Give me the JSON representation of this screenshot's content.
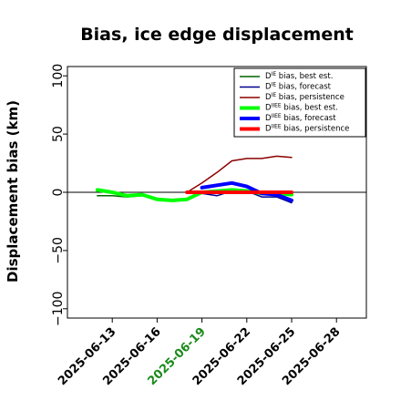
{
  "chart_data": {
    "type": "line",
    "title": "Bias, ice edge displacement",
    "xlabel": "",
    "ylabel": "Displacement bias (km)",
    "xlim": [
      "2025-06-10",
      "2025-06-30"
    ],
    "ylim": [
      -108,
      108
    ],
    "yticks": [
      -100,
      -50,
      0,
      50,
      100
    ],
    "ytick_labels": [
      "−100",
      "−50",
      "0",
      "50",
      "100"
    ],
    "xticks": [
      "2025-06-13",
      "2025-06-16",
      "2025-06-19",
      "2025-06-22",
      "2025-06-25",
      "2025-06-28"
    ],
    "xtick_labels": [
      "2025-06-13",
      "2025-06-16",
      "2025-06-19",
      "2025-06-22",
      "2025-06-25",
      "2025-06-28"
    ],
    "highlight_tick": "2025-06-19",
    "highlight_color": "#1a8a1a",
    "zero_line": true,
    "grid": false,
    "legend_position": "top-right",
    "series": [
      {
        "name": "D^IE bias, best est.",
        "color": "#006400",
        "width": 1.5,
        "points": [
          [
            "2025-06-12",
            -3
          ],
          [
            "2025-06-13",
            -3
          ],
          [
            "2025-06-14",
            -4
          ],
          [
            "2025-06-15",
            -3
          ],
          [
            "2025-06-16",
            -6
          ],
          [
            "2025-06-17",
            -7
          ],
          [
            "2025-06-18",
            -6
          ],
          [
            "2025-06-19",
            1
          ],
          [
            "2025-06-20",
            1
          ],
          [
            "2025-06-21",
            3
          ],
          [
            "2025-06-22",
            2
          ],
          [
            "2025-06-23",
            0
          ],
          [
            "2025-06-24",
            -1
          ],
          [
            "2025-06-25",
            -3
          ]
        ]
      },
      {
        "name": "D^IE bias, forecast",
        "color": "#00008b",
        "width": 1.5,
        "points": [
          [
            "2025-06-18",
            0
          ],
          [
            "2025-06-19",
            -1
          ],
          [
            "2025-06-20",
            -3
          ],
          [
            "2025-06-21",
            1
          ],
          [
            "2025-06-22",
            1
          ],
          [
            "2025-06-23",
            -4
          ],
          [
            "2025-06-24",
            -4
          ],
          [
            "2025-06-25",
            -9
          ]
        ]
      },
      {
        "name": "D^IE bias, persistence",
        "color": "#8b0000",
        "width": 1.5,
        "points": [
          [
            "2025-06-18",
            0
          ],
          [
            "2025-06-19",
            8
          ],
          [
            "2025-06-20",
            17
          ],
          [
            "2025-06-21",
            27
          ],
          [
            "2025-06-22",
            29
          ],
          [
            "2025-06-23",
            29
          ],
          [
            "2025-06-24",
            31
          ],
          [
            "2025-06-25",
            30
          ]
        ]
      },
      {
        "name": "D^IIEE bias, best est.",
        "color": "#00ff00",
        "width": 4,
        "points": [
          [
            "2025-06-12",
            2
          ],
          [
            "2025-06-13",
            0
          ],
          [
            "2025-06-14",
            -3
          ],
          [
            "2025-06-15",
            -2
          ],
          [
            "2025-06-16",
            -6
          ],
          [
            "2025-06-17",
            -7
          ],
          [
            "2025-06-18",
            -6
          ],
          [
            "2025-06-19",
            0
          ],
          [
            "2025-06-20",
            1
          ],
          [
            "2025-06-21",
            2
          ],
          [
            "2025-06-22",
            1
          ],
          [
            "2025-06-23",
            -1
          ],
          [
            "2025-06-24",
            -1
          ],
          [
            "2025-06-25",
            -2
          ]
        ]
      },
      {
        "name": "D^IIEE bias, forecast",
        "color": "#0000ff",
        "width": 4,
        "points": [
          [
            "2025-06-19",
            4
          ],
          [
            "2025-06-20",
            6
          ],
          [
            "2025-06-21",
            8
          ],
          [
            "2025-06-22",
            5
          ],
          [
            "2025-06-23",
            -1
          ],
          [
            "2025-06-24",
            -2
          ],
          [
            "2025-06-25",
            -7
          ]
        ]
      },
      {
        "name": "D^IIEE bias, persistence",
        "color": "#ff0000",
        "width": 4,
        "points": [
          [
            "2025-06-18",
            0
          ],
          [
            "2025-06-19",
            0
          ],
          [
            "2025-06-20",
            0
          ],
          [
            "2025-06-21",
            0
          ],
          [
            "2025-06-22",
            0
          ],
          [
            "2025-06-23",
            0
          ],
          [
            "2025-06-24",
            0
          ],
          [
            "2025-06-25",
            0
          ]
        ]
      }
    ]
  }
}
